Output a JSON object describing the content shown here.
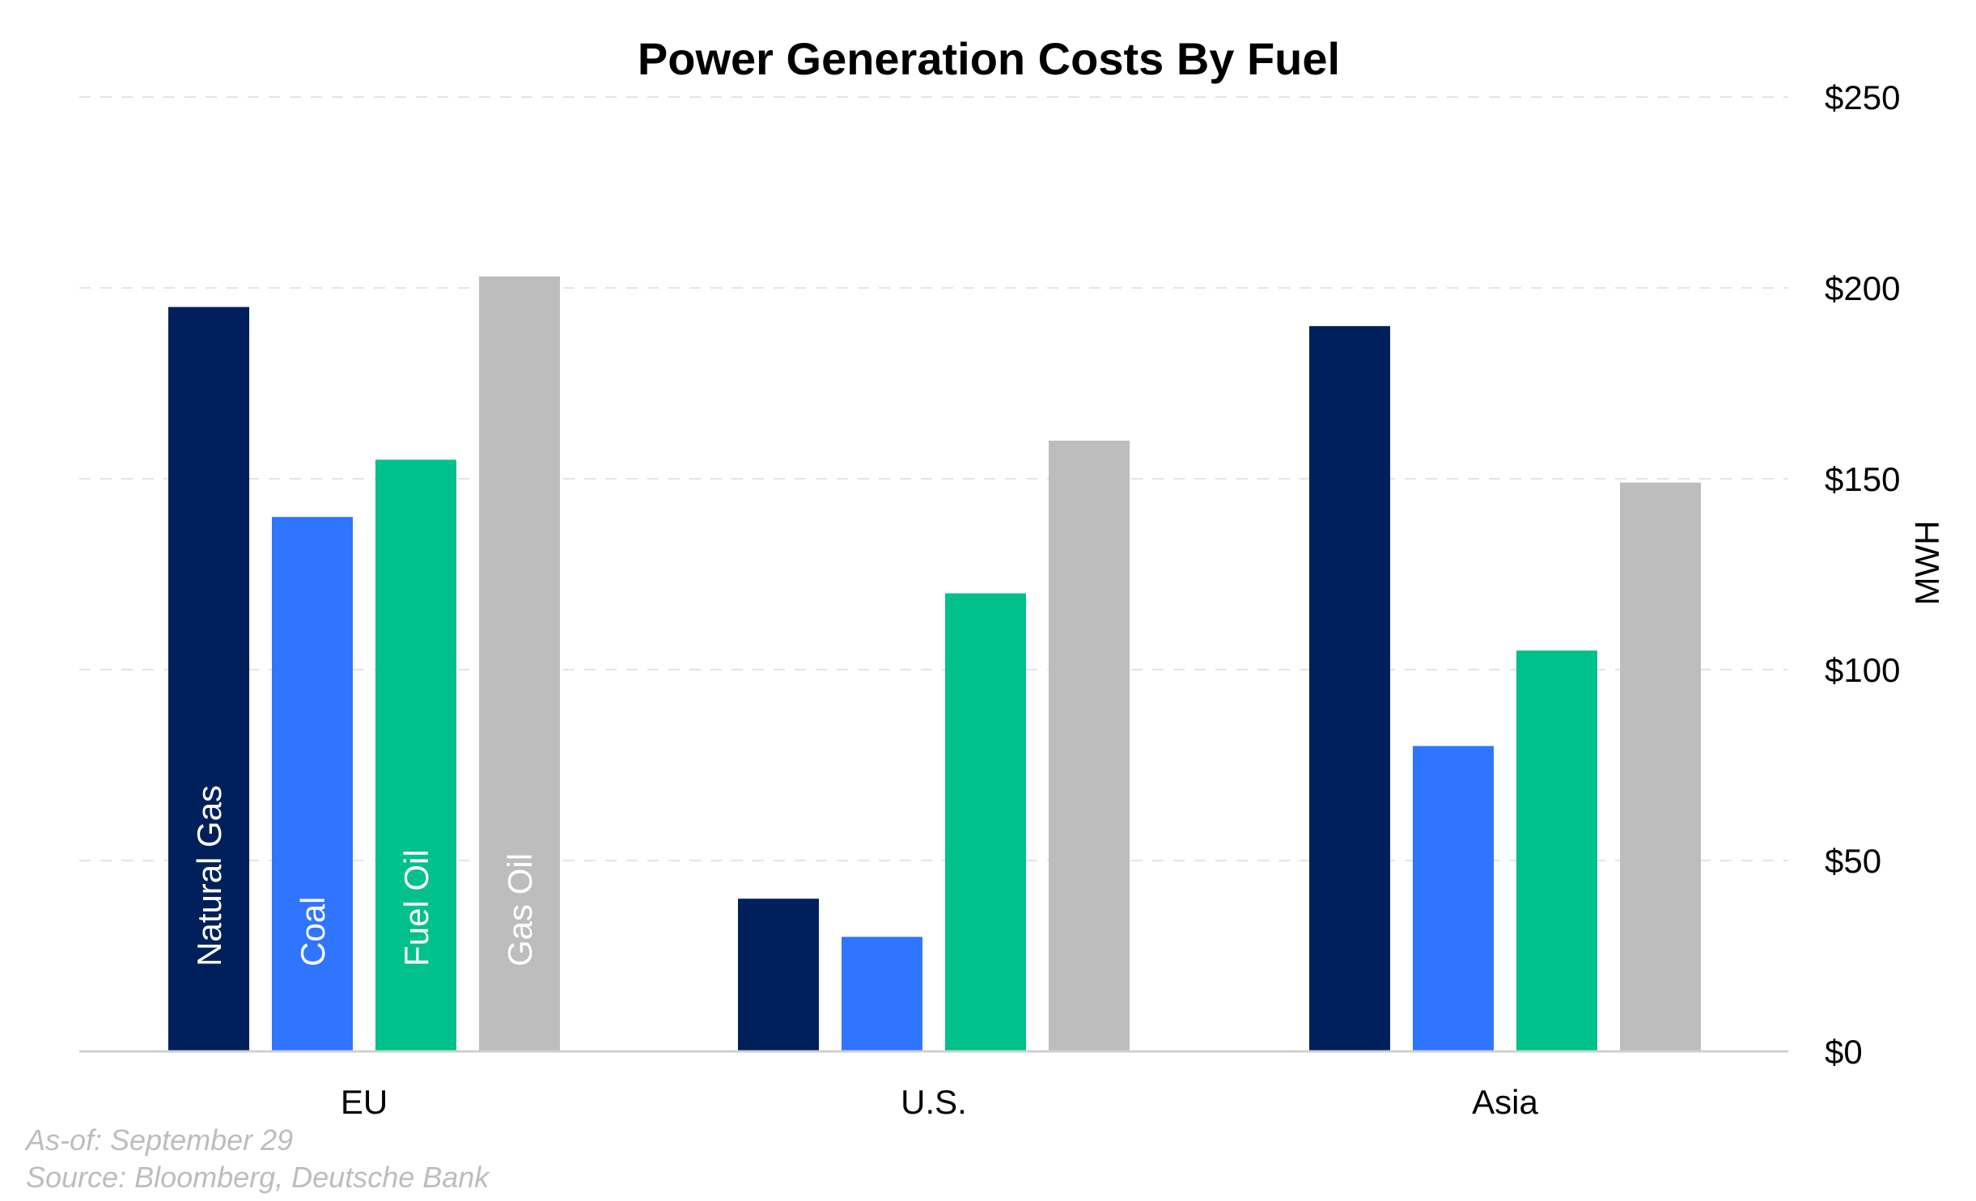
{
  "chart_data": {
    "type": "bar",
    "title": "Power Generation Costs By Fuel",
    "xlabel": "",
    "ylabel": "MWH",
    "categories": [
      "EU",
      "U.S.",
      "Asia"
    ],
    "ylim": [
      0,
      250
    ],
    "yticks": [
      0,
      50,
      100,
      150,
      200,
      250
    ],
    "ytick_labels": [
      "$0",
      "$50",
      "$100",
      "$150",
      "$200",
      "$250"
    ],
    "y_axis_side": "right",
    "grid": true,
    "legend": "none (series names printed inside the EU bars)",
    "series": [
      {
        "name": "Natural Gas",
        "color": "#00205b",
        "values": [
          195,
          40,
          190
        ]
      },
      {
        "name": "Coal",
        "color": "#2f75ff",
        "values": [
          140,
          30,
          80
        ]
      },
      {
        "name": "Fuel Oil",
        "color": "#00c08b",
        "values": [
          155,
          120,
          105
        ]
      },
      {
        "name": "Gas Oil",
        "color": "#bdbdbd",
        "values": [
          203,
          160,
          149
        ]
      }
    ],
    "notes": {
      "as_of": "As-of: September 29",
      "source": "Source: Bloomberg, Deutsche Bank"
    }
  }
}
